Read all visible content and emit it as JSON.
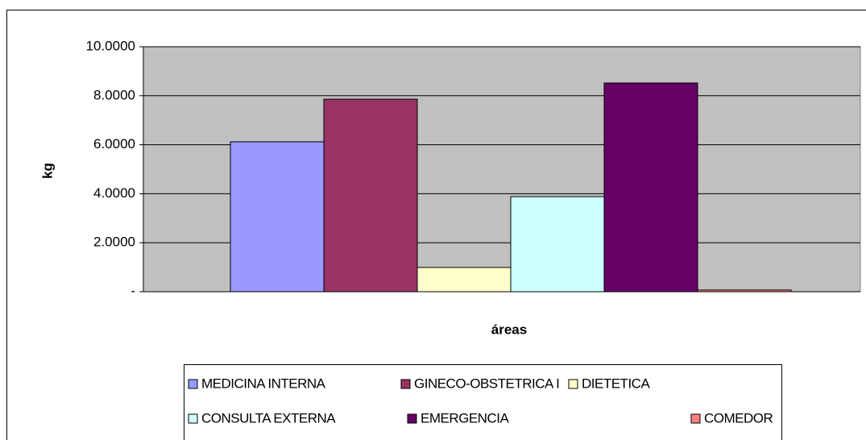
{
  "chart_data": {
    "type": "bar",
    "x_label": "áreas",
    "y_label": "kg",
    "categories": [
      null
    ],
    "series": [
      {
        "name": "MEDICINA INTERNA",
        "color": "#9999ff",
        "values": [
          6.12
        ]
      },
      {
        "name": "GINECO-OBSTETRICA I",
        "color": "#993366",
        "values": [
          7.86
        ]
      },
      {
        "name": "DIETETICA",
        "color": "#ffffcc",
        "values": [
          0.99
        ]
      },
      {
        "name": "CONSULTA EXTERNA",
        "color": "#ccffff",
        "values": [
          3.88
        ]
      },
      {
        "name": "EMERGENCIA",
        "color": "#660066",
        "values": [
          8.52
        ]
      },
      {
        "name": "COMEDOR",
        "color": "#ff8080",
        "values": [
          0.07
        ]
      }
    ],
    "ylim": [
      0,
      10
    ],
    "yticks": [
      {
        "value": 0,
        "label": "-"
      },
      {
        "value": 2,
        "label": "2.0000"
      },
      {
        "value": 4,
        "label": "4.0000"
      },
      {
        "value": 6,
        "label": "6.0000"
      },
      {
        "value": 8,
        "label": "8.0000"
      },
      {
        "value": 10,
        "label": "10.0000"
      }
    ],
    "grid": true,
    "plot_background": "#c0c0c0"
  }
}
